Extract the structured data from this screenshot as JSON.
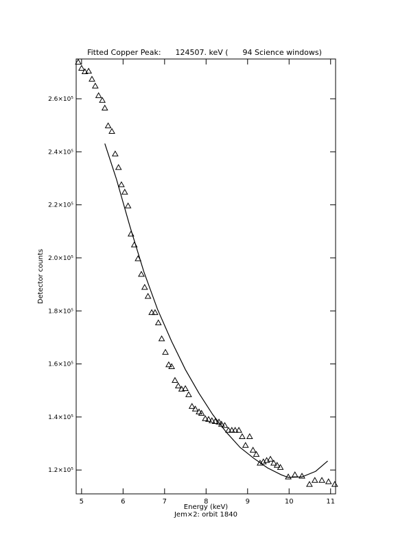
{
  "chart_data": {
    "type": "scatter",
    "title": "Fitted Copper Peak:      124507. keV (      94 Science windows)",
    "x_label": "Energy (keV)",
    "subtitle": "Jem×2: orbit 1840",
    "y_label": "Detector counts",
    "xlim": [
      4.87,
      11.12
    ],
    "ylim": [
      111000,
      275000
    ],
    "xticks": [
      5,
      6,
      7,
      8,
      9,
      10,
      11
    ],
    "yticks": [
      {
        "value": 120000,
        "label": "1.2×10⁵"
      },
      {
        "value": 140000,
        "label": "1.4×10⁵"
      },
      {
        "value": 160000,
        "label": "1.6×10⁵"
      },
      {
        "value": 180000,
        "label": "1.8×10⁵"
      },
      {
        "value": 200000,
        "label": "2.0×10⁵"
      },
      {
        "value": 220000,
        "label": "2.2×10⁵"
      },
      {
        "value": 240000,
        "label": "2.4×10⁵"
      },
      {
        "value": 260000,
        "label": "2.6×10⁵"
      }
    ],
    "series": [
      {
        "type": "scatter",
        "marker": "triangle",
        "color": "#000000",
        "x": [
          4.92,
          5.0,
          5.08,
          5.17,
          5.25,
          5.33,
          5.41,
          5.5,
          5.56,
          5.64,
          5.73,
          5.81,
          5.89,
          5.96,
          6.04,
          6.12,
          6.19,
          6.27,
          6.36,
          6.44,
          6.52,
          6.6,
          6.69,
          6.77,
          6.85,
          6.93,
          7.02,
          7.1,
          7.17,
          7.25,
          7.33,
          7.41,
          7.5,
          7.58,
          7.66,
          7.74,
          7.83,
          7.89,
          7.98,
          8.06,
          8.14,
          8.22,
          8.31,
          8.37,
          8.45,
          8.54,
          8.62,
          8.7,
          8.79,
          8.87,
          8.95,
          9.05,
          9.13,
          9.21,
          9.3,
          9.38,
          9.46,
          9.55,
          9.63,
          9.71,
          9.79,
          9.98,
          10.14,
          10.31,
          10.49,
          10.62,
          10.79,
          10.95,
          11.1
        ],
        "values": [
          273800,
          271500,
          270200,
          270400,
          267400,
          264800,
          261200,
          259400,
          256500,
          249800,
          247700,
          239200,
          234100,
          227600,
          224800,
          219600,
          209000,
          204900,
          199700,
          193800,
          188900,
          185500,
          179400,
          179400,
          175500,
          169500,
          164400,
          159700,
          159000,
          153800,
          151700,
          150500,
          150700,
          148400,
          144000,
          143000,
          141900,
          141400,
          139400,
          139100,
          138600,
          138300,
          138100,
          137300,
          136800,
          135000,
          135000,
          135000,
          135000,
          132600,
          129300,
          132600,
          127500,
          125900,
          122600,
          123100,
          123600,
          124100,
          122600,
          121800,
          121000,
          117400,
          118200,
          117700,
          114600,
          116100,
          116100,
          115600,
          114600
        ]
      },
      {
        "type": "line",
        "color": "#000000",
        "x": [
          5.56,
          5.84,
          6.17,
          6.5,
          6.83,
          7.17,
          7.5,
          7.83,
          8.16,
          8.49,
          8.82,
          9.15,
          9.48,
          9.81,
          9.98,
          10.31,
          10.64,
          10.93
        ],
        "values": [
          243100,
          229700,
          211600,
          194800,
          180600,
          168500,
          157900,
          148900,
          140900,
          134200,
          128500,
          124400,
          120800,
          118200,
          117200,
          117400,
          119500,
          123400
        ]
      }
    ]
  }
}
